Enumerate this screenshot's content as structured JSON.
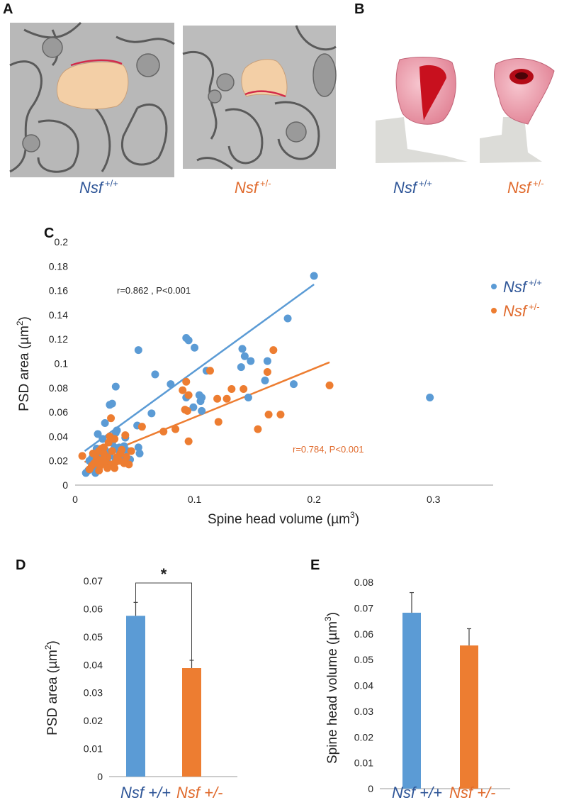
{
  "colors": {
    "wt": "#5b9bd5",
    "het": "#ed7d31",
    "wt_label": "#2e5597",
    "het_label": "#e06a2c",
    "em_bg": "#b5b5b5",
    "spine": "#f3cfa6"
  },
  "panels": {
    "a": "A",
    "b": "B",
    "c": "C",
    "d": "D",
    "e": "E"
  },
  "genotypes": {
    "gene": "Nsf",
    "wt": {
      "gene": "Nsf",
      "sup": "+/+"
    },
    "het": {
      "gene": "Nsf",
      "sup": "+/-"
    }
  },
  "chart_data": [
    {
      "id": "C",
      "type": "scatter",
      "xlabel_text": "Spine head volume (",
      "xlabel_unit": "µm",
      "xlabel_exp": "3",
      "xlabel_close": ")",
      "ylabel_text": "PSD area (",
      "ylabel_unit": "µm",
      "ylabel_exp": "2",
      "ylabel_close": ")",
      "xlim": [
        0,
        0.35
      ],
      "ylim": [
        0,
        0.2
      ],
      "xticks": [
        "0",
        "0.1",
        "0.2",
        "0.3"
      ],
      "xtick_values": [
        0,
        0.1,
        0.2,
        0.3
      ],
      "yticks": [
        "0",
        "0.02",
        "0.04",
        "0.06",
        "0.08",
        "0.1",
        "0.12",
        "0.14",
        "0.16",
        "0.18",
        "0.2"
      ],
      "ytick_values": [
        0,
        0.02,
        0.04,
        0.06,
        0.08,
        0.1,
        0.12,
        0.14,
        0.16,
        0.18,
        0.2
      ],
      "series": [
        {
          "name": "Nsf +/+",
          "key": "wt",
          "stat": "r=0.862 , P<0.001",
          "trend": {
            "x": [
              0.008,
              0.2
            ],
            "y": [
              0.028,
              0.165
            ]
          },
          "points": [
            [
              0.2,
              0.172
            ],
            [
              0.178,
              0.137
            ],
            [
              0.297,
              0.072
            ],
            [
              0.183,
              0.083
            ],
            [
              0.161,
              0.102
            ],
            [
              0.159,
              0.086
            ],
            [
              0.147,
              0.102
            ],
            [
              0.14,
              0.112
            ],
            [
              0.142,
              0.106
            ],
            [
              0.139,
              0.097
            ],
            [
              0.145,
              0.072
            ],
            [
              0.093,
              0.121
            ],
            [
              0.095,
              0.119
            ],
            [
              0.1,
              0.113
            ],
            [
              0.11,
              0.094
            ],
            [
              0.104,
              0.074
            ],
            [
              0.106,
              0.072
            ],
            [
              0.105,
              0.069
            ],
            [
              0.106,
              0.061
            ],
            [
              0.093,
              0.072
            ],
            [
              0.099,
              0.064
            ],
            [
              0.08,
              0.083
            ],
            [
              0.067,
              0.091
            ],
            [
              0.064,
              0.059
            ],
            [
              0.053,
              0.111
            ],
            [
              0.052,
              0.049
            ],
            [
              0.053,
              0.031
            ],
            [
              0.054,
              0.026
            ],
            [
              0.034,
              0.081
            ],
            [
              0.031,
              0.067
            ],
            [
              0.029,
              0.066
            ],
            [
              0.025,
              0.051
            ],
            [
              0.035,
              0.045
            ],
            [
              0.034,
              0.043
            ],
            [
              0.042,
              0.039
            ],
            [
              0.019,
              0.042
            ],
            [
              0.023,
              0.038
            ],
            [
              0.031,
              0.035
            ],
            [
              0.037,
              0.031
            ],
            [
              0.044,
              0.028
            ],
            [
              0.027,
              0.027
            ],
            [
              0.021,
              0.025
            ],
            [
              0.016,
              0.023
            ],
            [
              0.014,
              0.022
            ],
            [
              0.022,
              0.018
            ],
            [
              0.015,
              0.015
            ],
            [
              0.011,
              0.012
            ],
            [
              0.009,
              0.01
            ],
            [
              0.017,
              0.01
            ],
            [
              0.028,
              0.018
            ],
            [
              0.034,
              0.021
            ],
            [
              0.039,
              0.024
            ],
            [
              0.033,
              0.031
            ],
            [
              0.025,
              0.029
            ],
            [
              0.046,
              0.021
            ],
            [
              0.018,
              0.03
            ],
            [
              0.036,
              0.029
            ],
            [
              0.029,
              0.024
            ],
            [
              0.012,
              0.02
            ],
            [
              0.041,
              0.032
            ]
          ]
        },
        {
          "name": "Nsf +/-",
          "key": "het",
          "stat": "r=0.784, P<0.001",
          "trend": {
            "x": [
              0.008,
              0.213
            ],
            "y": [
              0.019,
              0.101
            ]
          },
          "points": [
            [
              0.166,
              0.111
            ],
            [
              0.161,
              0.093
            ],
            [
              0.213,
              0.082
            ],
            [
              0.162,
              0.058
            ],
            [
              0.172,
              0.058
            ],
            [
              0.153,
              0.046
            ],
            [
              0.141,
              0.079
            ],
            [
              0.131,
              0.079
            ],
            [
              0.127,
              0.071
            ],
            [
              0.113,
              0.094
            ],
            [
              0.119,
              0.071
            ],
            [
              0.12,
              0.052
            ],
            [
              0.093,
              0.085
            ],
            [
              0.09,
              0.078
            ],
            [
              0.095,
              0.074
            ],
            [
              0.092,
              0.062
            ],
            [
              0.094,
              0.061
            ],
            [
              0.095,
              0.036
            ],
            [
              0.084,
              0.046
            ],
            [
              0.074,
              0.044
            ],
            [
              0.056,
              0.048
            ],
            [
              0.03,
              0.055
            ],
            [
              0.042,
              0.041
            ],
            [
              0.029,
              0.04
            ],
            [
              0.033,
              0.038
            ],
            [
              0.047,
              0.028
            ],
            [
              0.043,
              0.023
            ],
            [
              0.045,
              0.017
            ],
            [
              0.038,
              0.026
            ],
            [
              0.027,
              0.023
            ],
            [
              0.022,
              0.03
            ],
            [
              0.02,
              0.028
            ],
            [
              0.024,
              0.026
            ],
            [
              0.018,
              0.022
            ],
            [
              0.016,
              0.018
            ],
            [
              0.014,
              0.016
            ],
            [
              0.012,
              0.013
            ],
            [
              0.019,
              0.019
            ],
            [
              0.023,
              0.021
            ],
            [
              0.026,
              0.018
            ],
            [
              0.03,
              0.017
            ],
            [
              0.034,
              0.019
            ],
            [
              0.037,
              0.02
            ],
            [
              0.041,
              0.018
            ],
            [
              0.027,
              0.014
            ],
            [
              0.02,
              0.012
            ],
            [
              0.006,
              0.024
            ],
            [
              0.024,
              0.031
            ],
            [
              0.031,
              0.028
            ],
            [
              0.035,
              0.023
            ],
            [
              0.039,
              0.029
            ],
            [
              0.028,
              0.035
            ],
            [
              0.015,
              0.026
            ],
            [
              0.021,
              0.016
            ],
            [
              0.033,
              0.014
            ]
          ]
        }
      ]
    },
    {
      "id": "D",
      "type": "bar",
      "ylabel_text": "PSD area (",
      "ylabel_unit": "µm",
      "ylabel_exp": "2",
      "ylabel_close": ")",
      "ylim": [
        0,
        0.07
      ],
      "yticks": [
        "0",
        "0.01",
        "0.02",
        "0.03",
        "0.04",
        "0.05",
        "0.06",
        "0.07"
      ],
      "ytick_values": [
        0,
        0.01,
        0.02,
        0.03,
        0.04,
        0.05,
        0.06,
        0.07
      ],
      "categories": [
        "Nsf +/+",
        "Nsf +/-"
      ],
      "values": [
        0.0575,
        0.0388
      ],
      "errors": [
        0.0048,
        0.0028
      ],
      "significance": "*"
    },
    {
      "id": "E",
      "type": "bar",
      "ylabel_text": "Spine head volume (",
      "ylabel_unit": "µm",
      "ylabel_exp": "3",
      "ylabel_close": ")",
      "ylim": [
        0,
        0.08
      ],
      "yticks": [
        "0",
        "0.01",
        "0.02",
        "0.03",
        "0.04",
        "0.05",
        "0.06",
        "0.07",
        "0.08"
      ],
      "ytick_values": [
        0,
        0.01,
        0.02,
        0.03,
        0.04,
        0.05,
        0.06,
        0.07,
        0.08
      ],
      "categories": [
        "Nsf +/+",
        "Nsf +/-"
      ],
      "values": [
        0.0682,
        0.0555
      ],
      "errors": [
        0.0078,
        0.0065
      ]
    }
  ]
}
